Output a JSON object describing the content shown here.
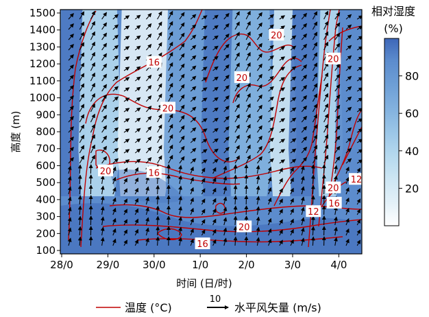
{
  "chart_data": {
    "type": "heatmap",
    "title": "",
    "xlabel": "时间 (日/时)",
    "ylabel": "高度 (m)",
    "x_ticks": [
      "28/0",
      "29/0",
      "30/0",
      "1/0",
      "2/0",
      "3/0",
      "4/0"
    ],
    "y_ticks": [
      100,
      200,
      300,
      400,
      500,
      600,
      700,
      800,
      900,
      1000,
      1100,
      1200,
      1300,
      1400,
      1500
    ],
    "ylim": [
      80,
      1520
    ],
    "colorbar": {
      "title_line1": "相对湿度",
      "title_line2": "(%)",
      "ticks": [
        20,
        40,
        60,
        80
      ],
      "range": [
        0,
        100
      ],
      "colors": [
        "#ffffff",
        "#e4f1f8",
        "#cde6f3",
        "#b4d8ee",
        "#9bc6e7",
        "#83b2df",
        "#6e9fd6",
        "#5c8ccd",
        "#4c79c2",
        "#3e67b8"
      ]
    },
    "humidity_moist_bands": [
      {
        "from_day": 0.0,
        "to_day": 0.45,
        "rh": 80
      },
      {
        "from_day": 0.45,
        "to_day": 1.2,
        "rh": 30
      },
      {
        "from_day": 1.3,
        "to_day": 2.3,
        "rh": 10
      },
      {
        "from_day": 2.3,
        "to_day": 3.1,
        "rh": 60
      },
      {
        "from_day": 3.1,
        "to_day": 3.7,
        "rh": 80
      },
      {
        "from_day": 3.7,
        "to_day": 4.5,
        "rh": 50
      },
      {
        "from_day": 4.6,
        "to_day": 5.0,
        "rh": 20
      },
      {
        "from_day": 5.0,
        "to_day": 5.5,
        "rh": 85
      },
      {
        "from_day": 5.6,
        "to_day": 6.0,
        "rh": 30
      },
      {
        "from_day": 6.0,
        "to_day": 6.6,
        "rh": 70
      }
    ],
    "temperature_contour_labels": [
      {
        "text": "20",
        "day": 4.65,
        "height": 1370
      },
      {
        "text": "20",
        "day": 5.88,
        "height": 1230
      },
      {
        "text": "16",
        "day": 2.0,
        "height": 1210
      },
      {
        "text": "20",
        "day": 3.9,
        "height": 1120
      },
      {
        "text": "20",
        "day": 2.3,
        "height": 940
      },
      {
        "text": "16",
        "day": 2.0,
        "height": 560
      },
      {
        "text": "20",
        "day": 0.95,
        "height": 570
      },
      {
        "text": "12",
        "day": 6.38,
        "height": 520
      },
      {
        "text": "20",
        "day": 5.88,
        "height": 470
      },
      {
        "text": "16",
        "day": 5.9,
        "height": 380
      },
      {
        "text": "12",
        "day": 5.45,
        "height": 330
      },
      {
        "text": "20",
        "day": 3.95,
        "height": 240
      },
      {
        "text": "16",
        "day": 3.05,
        "height": 140
      }
    ],
    "legend": {
      "temperature_label": "温度 (°C)",
      "wind_label": "水平风矢量 (m/s)",
      "wind_ref_value": "10"
    },
    "colors": {
      "contour": "#c00000",
      "arrow": "#000000"
    }
  }
}
